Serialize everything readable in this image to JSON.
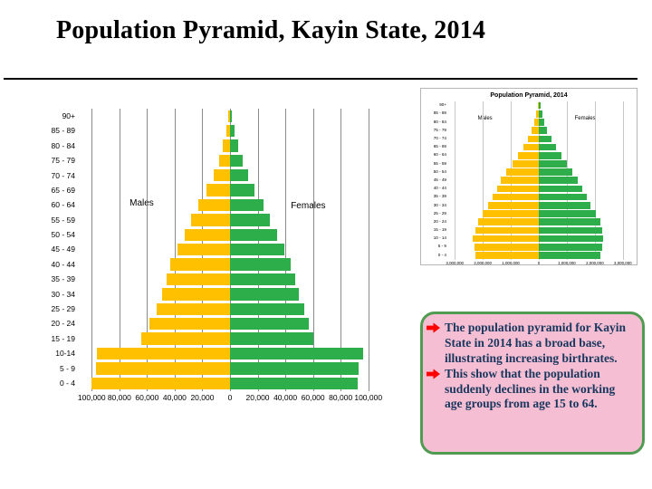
{
  "slide": {
    "title": "Population Pyramid, Kayin State, 2014"
  },
  "colors": {
    "male_bar": "#FFC000",
    "female_bar": "#2EAD4B",
    "main_grid": "#8c8c8c",
    "inset_grid": "#c8c8c8",
    "note_bg": "#F6BED2",
    "note_border": "#4E9B51",
    "note_text": "#17375E",
    "arrow": "#FF0000"
  },
  "chart_data": [
    {
      "id": "main-pyramid",
      "type": "bar",
      "subtype": "population-pyramid",
      "title": "",
      "male_label": "Males",
      "female_label": "Females",
      "row_order": "top-to-bottom",
      "age_groups": [
        "90+",
        "85 - 89",
        "80 - 84",
        "75 - 79",
        "70 - 74",
        "65 - 69",
        "60 - 64",
        "55 - 59",
        "50 - 54",
        "45 - 49",
        "40 - 44",
        "35 - 39",
        "30 - 34",
        "25 - 29",
        "20 - 24",
        "15 - 19",
        "10-14",
        "5 - 9",
        "0 - 4"
      ],
      "series": [
        {
          "name": "Males",
          "side": "left",
          "values": [
            1200,
            2500,
            5000,
            8000,
            12000,
            17000,
            23000,
            28000,
            33000,
            38000,
            43000,
            46000,
            49000,
            53000,
            58000,
            64000,
            96000,
            97000,
            100000
          ]
        },
        {
          "name": "Females",
          "side": "right",
          "values": [
            1500,
            3000,
            6000,
            9000,
            13000,
            18000,
            24000,
            29000,
            34000,
            39000,
            44000,
            47000,
            50000,
            54000,
            57000,
            60000,
            96000,
            93000,
            92000
          ]
        }
      ],
      "x_tick_labels": [
        "100,000",
        "80,000",
        "60,000",
        "40,000",
        "20,000",
        "0",
        "20,000",
        "40,000",
        "60,000",
        "80,000",
        "100,000"
      ],
      "x_tick_values": [
        -100000,
        -80000,
        -60000,
        -40000,
        -20000,
        0,
        20000,
        40000,
        60000,
        80000,
        100000
      ],
      "x_max": 110000,
      "grid": true,
      "legend_position": "none"
    },
    {
      "id": "inset-pyramid",
      "type": "bar",
      "subtype": "population-pyramid",
      "title": "Population Pyramid, 2014",
      "male_label": "Males",
      "female_label": "Females",
      "row_order": "top-to-bottom",
      "age_groups": [
        "90+",
        "85 - 89",
        "80 - 84",
        "75 - 79",
        "70 - 74",
        "65 - 69",
        "60 - 64",
        "55 - 59",
        "50 - 54",
        "45 - 49",
        "40 - 44",
        "35 - 39",
        "30 - 34",
        "25 - 29",
        "20 - 24",
        "15 - 19",
        "10 - 14",
        "5 - 9",
        "0 - 4"
      ],
      "series": [
        {
          "name": "Males",
          "side": "left",
          "values": [
            40000,
            90000,
            150000,
            250000,
            400000,
            550000,
            750000,
            950000,
            1150000,
            1350000,
            1500000,
            1650000,
            1800000,
            2000000,
            2150000,
            2250000,
            2350000,
            2300000,
            2250000
          ]
        },
        {
          "name": "Females",
          "side": "right",
          "values": [
            60000,
            120000,
            200000,
            300000,
            450000,
            600000,
            800000,
            1000000,
            1200000,
            1400000,
            1550000,
            1700000,
            1850000,
            2050000,
            2200000,
            2250000,
            2300000,
            2250000,
            2200000
          ]
        }
      ],
      "x_tick_labels": [
        "3,000,000",
        "2,000,000",
        "1,000,000",
        "0",
        "1,000,000",
        "2,000,000",
        "3,000,000"
      ],
      "x_tick_values": [
        -3000000,
        -2000000,
        -1000000,
        0,
        1000000,
        2000000,
        3000000
      ],
      "x_max": 3200000,
      "grid": true,
      "legend_position": "none"
    }
  ],
  "note_box": {
    "items": [
      {
        "text": "The population pyramid for Kayin State in 2014 has a broad base, illustrating increasing birthrates."
      },
      {
        "text": "This show that the population suddenly declines in the working age groups from age 15 to 64."
      }
    ]
  }
}
